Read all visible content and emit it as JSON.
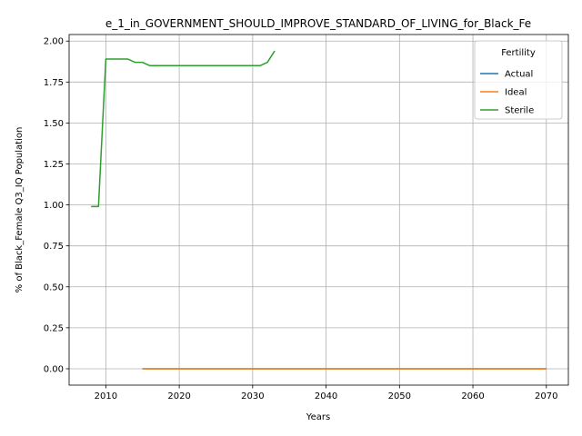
{
  "chart_data": {
    "type": "line",
    "title": "e_1_in_GOVERNMENT_SHOULD_IMPROVE_STANDARD_OF_LIVING_for_Black_Fe",
    "xlabel": "Years",
    "ylabel": "% of Black_Female Q3_IQ Population",
    "xlim": [
      2005,
      2073
    ],
    "ylim": [
      -0.1,
      2.04
    ],
    "xticks": [
      2010,
      2020,
      2030,
      2040,
      2050,
      2060,
      2070
    ],
    "yticks": [
      0.0,
      0.25,
      0.5,
      0.75,
      1.0,
      1.25,
      1.5,
      1.75,
      2.0
    ],
    "grid": true,
    "legend": {
      "title": "Fertility",
      "placement": "top-right"
    },
    "series": [
      {
        "name": "Actual",
        "color": "#1f77b4",
        "x": [
          2015,
          2070
        ],
        "y": [
          0,
          0
        ]
      },
      {
        "name": "Ideal",
        "color": "#ff7f0e",
        "x": [
          2015,
          2020,
          2030,
          2040,
          2050,
          2060,
          2070
        ],
        "y": [
          0,
          0,
          0,
          0,
          0,
          0,
          0
        ]
      },
      {
        "name": "Sterile",
        "color": "#2ca02c",
        "x": [
          2008,
          2009,
          2010,
          2011,
          2012,
          2013,
          2014,
          2015,
          2016,
          2017,
          2018,
          2019,
          2020,
          2021,
          2022,
          2023,
          2024,
          2025,
          2026,
          2027,
          2028,
          2029,
          2030,
          2031,
          2032,
          2033
        ],
        "y": [
          0.99,
          0.99,
          1.89,
          1.89,
          1.89,
          1.89,
          1.87,
          1.87,
          1.85,
          1.85,
          1.85,
          1.85,
          1.85,
          1.85,
          1.85,
          1.85,
          1.85,
          1.85,
          1.85,
          1.85,
          1.85,
          1.85,
          1.85,
          1.85,
          1.87,
          1.94
        ]
      }
    ]
  }
}
